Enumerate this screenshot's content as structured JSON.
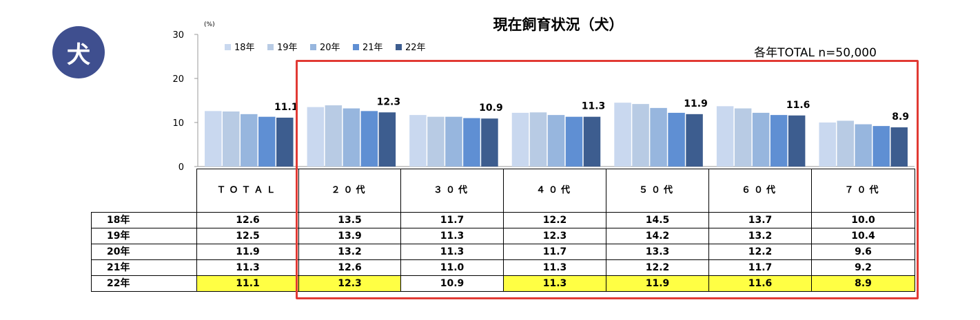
{
  "badge": {
    "label": "犬"
  },
  "colors": {
    "frame": "#e13a34",
    "highlight": "#ffff44",
    "badge": "#3f4f8f"
  },
  "chart_data": {
    "type": "bar",
    "title": "現在飼育状況（犬）",
    "subtitle": "各年TOTAL n=50,000",
    "unit": "(%)",
    "ylim": [
      0,
      30
    ],
    "yticks": [
      0,
      10,
      20,
      30
    ],
    "legend_position": "top-left",
    "categories": [
      "ＴＯＴＡＬ",
      "２０代",
      "３０代",
      "４０代",
      "５０代",
      "６０代",
      "７０代"
    ],
    "series": [
      {
        "name": "18年",
        "color": "#c9d8ef",
        "values": [
          12.6,
          13.5,
          11.7,
          12.2,
          14.5,
          13.7,
          10.0
        ]
      },
      {
        "name": "19年",
        "color": "#b8cbe4",
        "values": [
          12.5,
          13.9,
          11.3,
          12.3,
          14.2,
          13.2,
          10.4
        ]
      },
      {
        "name": "20年",
        "color": "#97b6de",
        "values": [
          11.9,
          13.2,
          11.3,
          11.7,
          13.3,
          12.2,
          9.6
        ]
      },
      {
        "name": "21年",
        "color": "#5f8fd3",
        "values": [
          11.3,
          12.6,
          11.0,
          11.3,
          12.2,
          11.7,
          9.2
        ]
      },
      {
        "name": "22年",
        "color": "#3d5d8f",
        "values": [
          11.1,
          12.3,
          10.9,
          11.3,
          11.9,
          11.6,
          8.9
        ]
      }
    ],
    "labels": [
      "11.1",
      "12.3",
      "10.9",
      "11.3",
      "11.9",
      "11.6",
      "8.9"
    ],
    "highlight_row": "22年",
    "highlight_cells": [
      true,
      true,
      false,
      true,
      true,
      true,
      true
    ]
  },
  "table": {
    "rows": [
      {
        "label": "18年",
        "cells": [
          "12.6",
          "13.5",
          "11.7",
          "12.2",
          "14.5",
          "13.7",
          "10.0"
        ]
      },
      {
        "label": "19年",
        "cells": [
          "12.5",
          "13.9",
          "11.3",
          "12.3",
          "14.2",
          "13.2",
          "10.4"
        ]
      },
      {
        "label": "20年",
        "cells": [
          "11.9",
          "13.2",
          "11.3",
          "11.7",
          "13.3",
          "12.2",
          "9.6"
        ]
      },
      {
        "label": "21年",
        "cells": [
          "11.3",
          "12.6",
          "11.0",
          "11.3",
          "12.2",
          "11.7",
          "9.2"
        ]
      },
      {
        "label": "22年",
        "cells": [
          "11.1",
          "12.3",
          "10.9",
          "11.3",
          "11.9",
          "11.6",
          "8.9"
        ]
      }
    ]
  }
}
